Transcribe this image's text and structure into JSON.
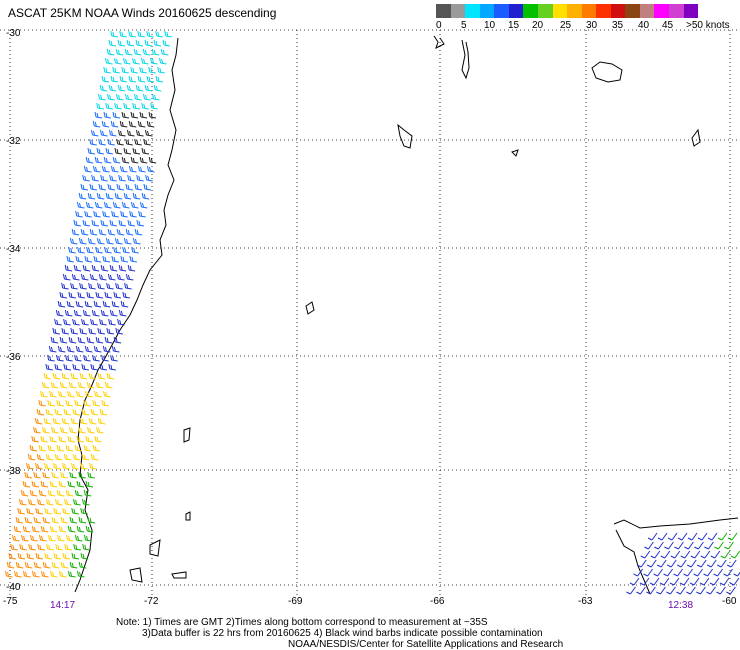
{
  "title": "ASCAT 25KM NOAA Winds 20160625 descending",
  "legend": {
    "colors": [
      "#555555",
      "#9a9a9a",
      "#00e5ff",
      "#00a8ff",
      "#1a5cff",
      "#2020d0",
      "#00c000",
      "#66d020",
      "#ffe000",
      "#ffb000",
      "#ff7a00",
      "#ff3000",
      "#d01010",
      "#8b4513",
      "#c08080",
      "#ff00ff",
      "#d040d0",
      "#8000c0"
    ],
    "labels": [
      "0",
      "5",
      "10",
      "15",
      "20",
      "25",
      "30",
      "35",
      "40",
      "45",
      ">50 knots"
    ]
  },
  "map": {
    "lat_labels": [
      "-30",
      "-32",
      "-34",
      "-36",
      "-38",
      "-40"
    ],
    "lon_labels": [
      "-75",
      "-72",
      "-69",
      "-66",
      "-63",
      "-60"
    ],
    "pass_times": {
      "left": "14:17",
      "right": "12:38"
    }
  },
  "notes": [
    "Note: 1) Times are GMT 2)Times along bottom correspond to measurement at ~35S",
    "3)Data buffer is 22 hrs from 20160625 4) Black wind barbs indicate possible contamination",
    "NOAA/NESDIS/Center for Satellite Applications and Research"
  ]
}
